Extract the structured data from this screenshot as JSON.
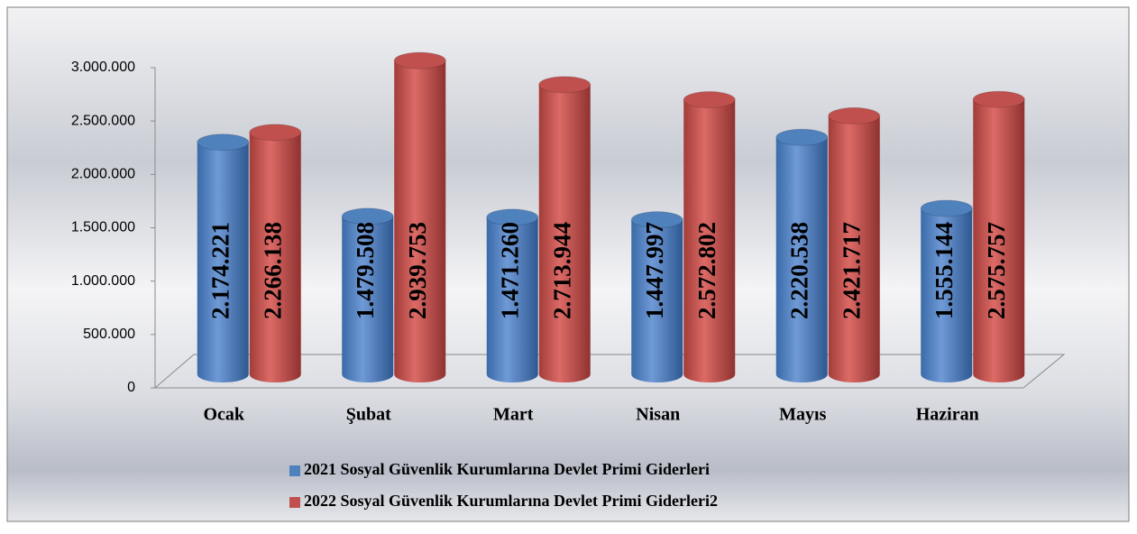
{
  "chart_data": {
    "type": "bar",
    "categories": [
      "Ocak",
      "Şubat",
      "Mart",
      "Nisan",
      "Mayıs",
      "Haziran"
    ],
    "series": [
      {
        "name": "2021 Sosyal Güvenlik Kurumlarına Devlet Primi Giderleri",
        "color": "#4f81bd",
        "values": [
          2174221,
          1479508,
          1471260,
          1447997,
          2220538,
          1555144
        ],
        "value_labels": [
          "2.174.221",
          "1.479.508",
          "1.471.260",
          "1.447.997",
          "2.220.538",
          "1.555.144"
        ]
      },
      {
        "name": "2022 Sosyal Güvenlik Kurumlarına Devlet Primi Giderleri2",
        "color": "#c0504d",
        "values": [
          2266138,
          2939753,
          2713944,
          2572802,
          2421717,
          2575757
        ],
        "value_labels": [
          "2.266.138",
          "2.939.753",
          "2.713.944",
          "2.572.802",
          "2.421.717",
          "2.575.757"
        ]
      }
    ],
    "ylim": [
      0,
      3000000
    ],
    "yticks": [
      0,
      {
        "value": 500000,
        "label": "500.000"
      },
      {
        "value": 1000000,
        "label": "1.000.000"
      },
      {
        "value": 1500000,
        "label": "1.500.000"
      },
      {
        "value": 2000000,
        "label": "2.000.000"
      },
      {
        "value": 2500000,
        "label": "2.500.000"
      },
      {
        "value": 3000000,
        "label": "3.000.000"
      }
    ],
    "legend": "bottom"
  }
}
